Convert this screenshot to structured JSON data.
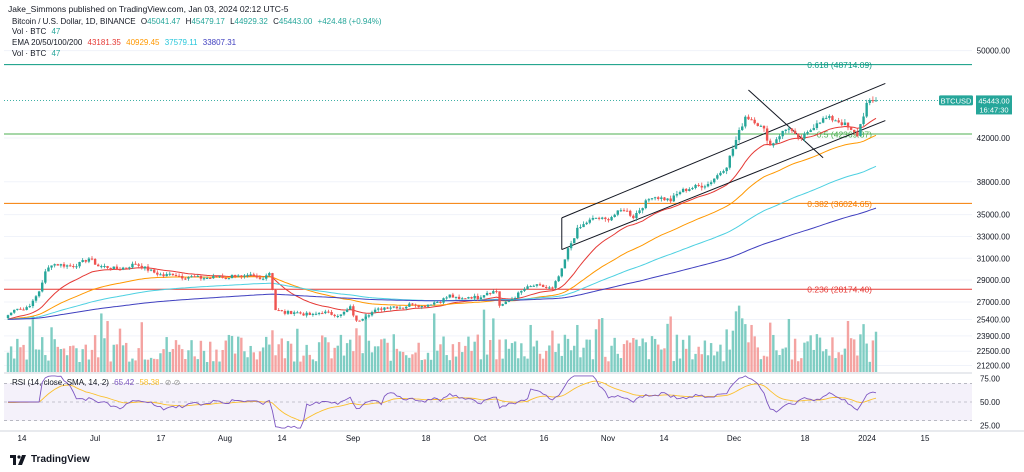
{
  "header": {
    "publisher": "Jake_Simmons published on TradingView.com, Jan 03, 2024 02:12 UTC-5"
  },
  "legend": {
    "symbol": "Bitcoin / U.S. Dollar, 1D, BINANCE",
    "o_label": "O",
    "o_value": "45041.47",
    "h_label": "H",
    "h_value": "45479.17",
    "l_label": "L",
    "l_value": "44929.32",
    "c_label": "C",
    "c_value": "45443.00",
    "change": "+424.48 (+0.94%)",
    "vol_label": "Vol · BTC",
    "vol_value": "47",
    "ema_label": "EMA 20/50/100/200",
    "ema20": "43181.35",
    "ema50": "40929.45",
    "ema100": "37579.11",
    "ema200": "33807.31",
    "vol2_label": "Vol · BTC",
    "vol2_value": "47"
  },
  "price_tag": {
    "symbol": "BTCUSD",
    "price": "45443.00",
    "countdown": "16:47:30"
  },
  "fib_levels": [
    {
      "label": "0.618 (48714.09)",
      "price": 48714.09,
      "color": "#089981"
    },
    {
      "label": "0.5 (42369.37)",
      "price": 42369.37,
      "color": "#4caf50"
    },
    {
      "label": "0.382 (36024.65)",
      "price": 36024.65,
      "color": "#f57c00"
    },
    {
      "label": "0.236 (28174.40)",
      "price": 28174.4,
      "color": "#e53935"
    }
  ],
  "rsi": {
    "label": "RSI (14, close, SMA, 14, 2)",
    "value": "65.42",
    "sma": "58.38",
    "ticks": [
      "75.00",
      "50.00",
      "25.00"
    ]
  },
  "footer": {
    "brand": "TradingView"
  },
  "colors": {
    "up": "#26a69a",
    "down": "#ef5350",
    "ema20": "#e53935",
    "ema50": "#ff9800",
    "ema100": "#4dd0e1",
    "ema200": "#3f3fbf",
    "rsi": "#7e57c2",
    "rsi_sma": "#fbc02d"
  },
  "chart_data": {
    "type": "candlestick",
    "title": "Bitcoin / U.S. Dollar, 1D, BINANCE",
    "x_ticks": [
      "14",
      "Jul",
      "17",
      "Aug",
      "14",
      "Sep",
      "18",
      "Oct",
      "16",
      "Nov",
      "14",
      "Dec",
      "18",
      "2024",
      "15"
    ],
    "y_ticks": [
      "50000.00",
      "42000.00",
      "38000.00",
      "35000.00",
      "33000.00",
      "31000.00",
      "29000.00",
      "27000.00",
      "25400.00",
      "23900.00",
      "22500.00",
      "21200.00"
    ],
    "price_range": [
      20600,
      52800
    ],
    "last_close": 45443.0,
    "series": [
      {
        "name": "BTCUSD",
        "points": [
          [
            0,
            25800
          ],
          [
            3,
            26500
          ],
          [
            5,
            26300
          ],
          [
            8,
            27000
          ],
          [
            10,
            28000
          ],
          [
            12,
            29700
          ],
          [
            14,
            30500
          ],
          [
            17,
            30400
          ],
          [
            20,
            30300
          ],
          [
            23,
            30500
          ],
          [
            26,
            31000
          ],
          [
            29,
            30300
          ],
          [
            32,
            30200
          ],
          [
            35,
            30000
          ],
          [
            38,
            30200
          ],
          [
            41,
            30500
          ],
          [
            44,
            30100
          ],
          [
            47,
            29700
          ],
          [
            50,
            29400
          ],
          [
            53,
            29600
          ],
          [
            56,
            29300
          ],
          [
            59,
            29300
          ],
          [
            62,
            29200
          ],
          [
            65,
            29200
          ],
          [
            68,
            29400
          ],
          [
            71,
            29100
          ],
          [
            72,
            29600
          ],
          [
            75,
            29200
          ],
          [
            78,
            29400
          ],
          [
            81,
            29100
          ],
          [
            84,
            29700
          ],
          [
            85,
            28200
          ],
          [
            86,
            26300
          ],
          [
            89,
            26000
          ],
          [
            92,
            26100
          ],
          [
            95,
            25900
          ],
          [
            98,
            25800
          ],
          [
            101,
            26100
          ],
          [
            104,
            25900
          ],
          [
            107,
            25800
          ],
          [
            110,
            26500
          ],
          [
            112,
            25200
          ],
          [
            115,
            25800
          ],
          [
            118,
            26200
          ],
          [
            121,
            26500
          ],
          [
            124,
            26600
          ],
          [
            127,
            26500
          ],
          [
            130,
            26900
          ],
          [
            133,
            26600
          ],
          [
            136,
            26900
          ],
          [
            139,
            27100
          ],
          [
            142,
            27600
          ],
          [
            145,
            27200
          ],
          [
            148,
            27500
          ],
          [
            151,
            27400
          ],
          [
            154,
            27900
          ],
          [
            157,
            28000
          ],
          [
            158,
            26700
          ],
          [
            160,
            26900
          ],
          [
            163,
            27500
          ],
          [
            166,
            28200
          ],
          [
            169,
            28500
          ],
          [
            172,
            28400
          ],
          [
            175,
            28200
          ],
          [
            178,
            29900
          ],
          [
            180,
            31800
          ],
          [
            183,
            33600
          ],
          [
            186,
            34300
          ],
          [
            189,
            34700
          ],
          [
            192,
            34500
          ],
          [
            195,
            35000
          ],
          [
            198,
            35500
          ],
          [
            201,
            34800
          ],
          [
            204,
            35800
          ],
          [
            207,
            36700
          ],
          [
            210,
            36500
          ],
          [
            213,
            36300
          ],
          [
            216,
            37100
          ],
          [
            219,
            37400
          ],
          [
            222,
            37600
          ],
          [
            225,
            37800
          ],
          [
            228,
            38600
          ],
          [
            231,
            39500
          ],
          [
            234,
            41800
          ],
          [
            237,
            44000
          ],
          [
            240,
            43600
          ],
          [
            243,
            42700
          ],
          [
            245,
            41300
          ],
          [
            248,
            42300
          ],
          [
            251,
            43000
          ],
          [
            254,
            41800
          ],
          [
            257,
            42400
          ],
          [
            260,
            43500
          ],
          [
            263,
            43800
          ],
          [
            266,
            43700
          ],
          [
            269,
            43200
          ],
          [
            271,
            42600
          ],
          [
            273,
            42300
          ],
          [
            276,
            45100
          ],
          [
            279,
            45443
          ]
        ]
      }
    ],
    "volume_label": "Vol · BTC",
    "rsi_label": "RSI (14, close, SMA, 14, 2)"
  }
}
